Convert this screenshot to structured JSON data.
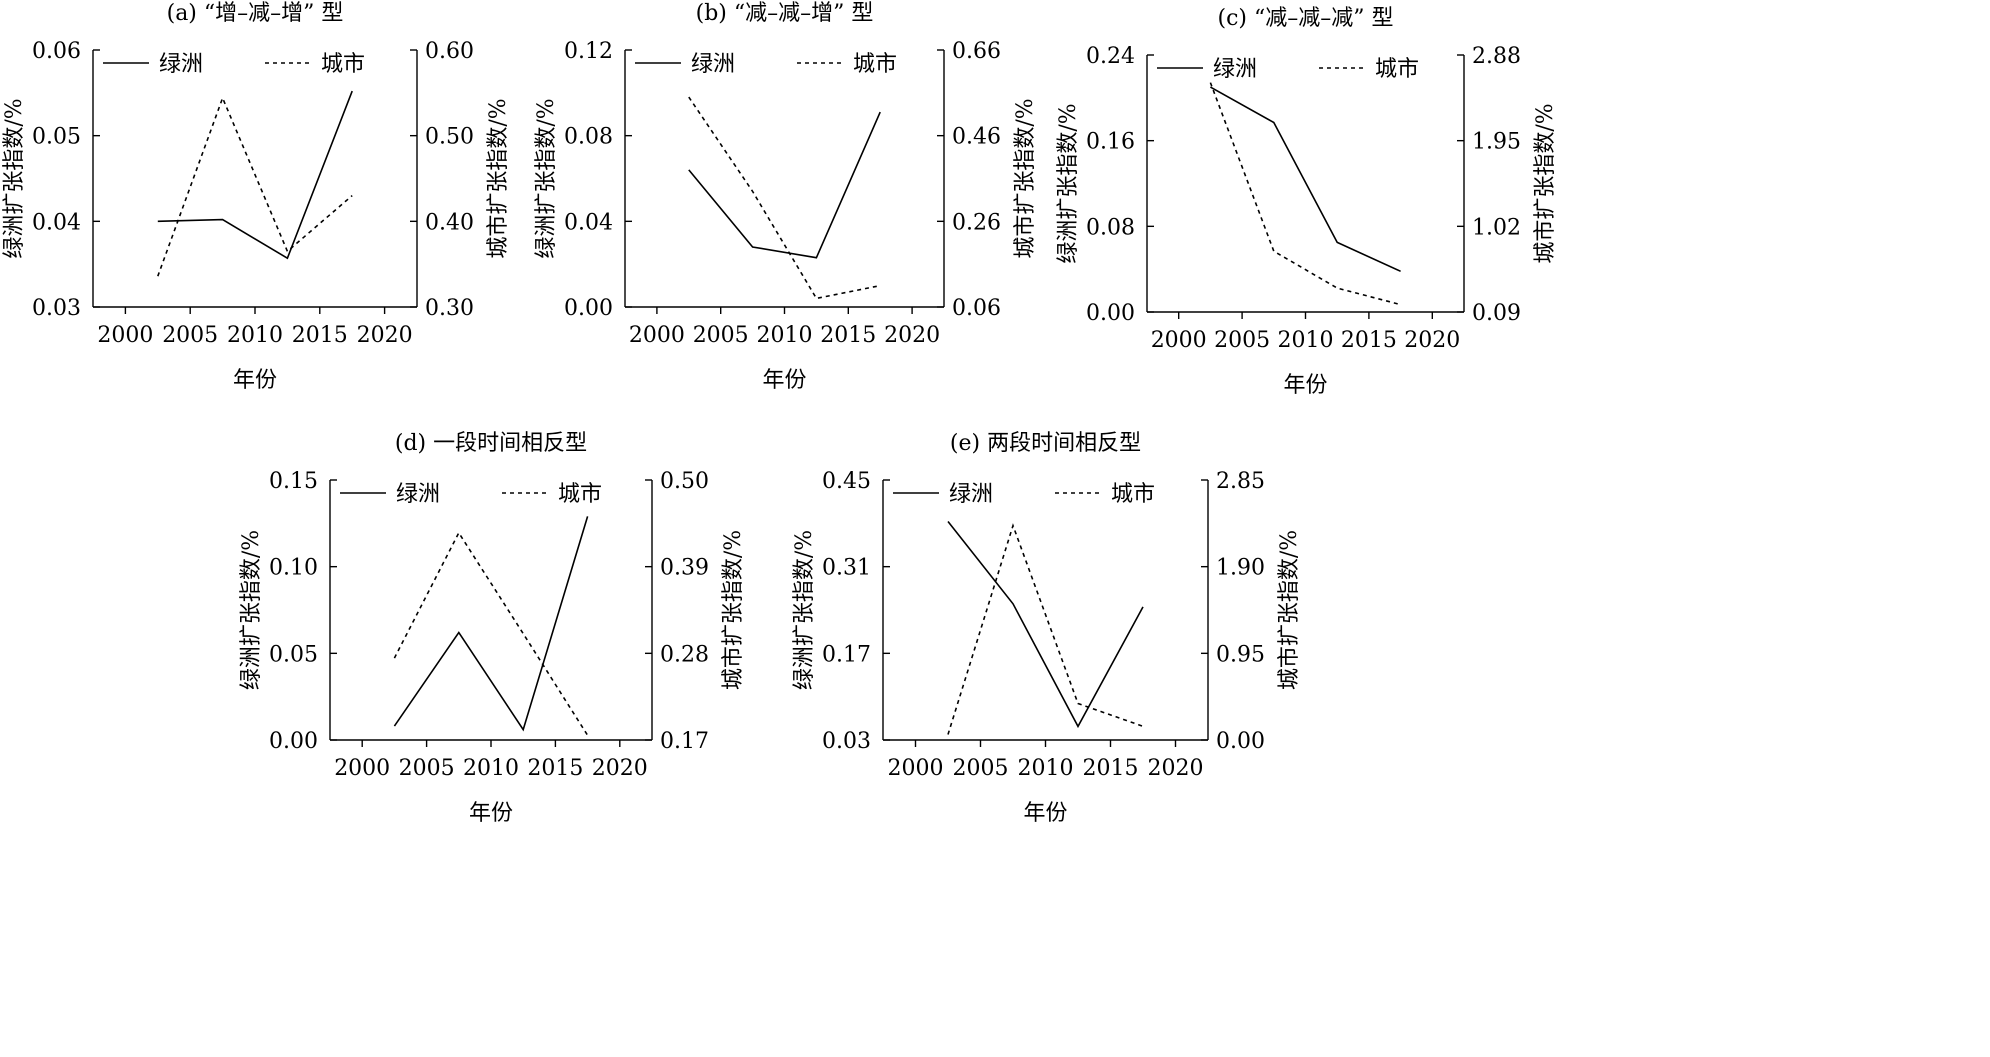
{
  "chart_data": [
    {
      "type": "line",
      "title": "(a) “增–减–增” 型",
      "xlabel": "年份",
      "ylabel": "绿洲扩张指数/%",
      "y2label": "城市扩张指数/%",
      "xlim": [
        1997.5,
        2022.5
      ],
      "xticks": [
        2000,
        2005,
        2010,
        2015,
        2020
      ],
      "ylim": [
        0.03,
        0.06
      ],
      "yticks": [
        "0.03",
        "0.04",
        "0.05",
        "0.06"
      ],
      "y2lim": [
        0.3,
        0.6
      ],
      "y2ticks": [
        "0.30",
        "0.40",
        "0.50",
        "0.60"
      ],
      "legend": "top",
      "series": [
        {
          "name": "绿洲",
          "axis": "left",
          "style": "solid",
          "x": [
            2002.5,
            2007.5,
            2012.5,
            2017.5
          ],
          "values": [
            0.04,
            0.0402,
            0.0357,
            0.0552
          ]
        },
        {
          "name": "城市",
          "axis": "right",
          "style": "dashed",
          "x": [
            2002.5,
            2007.5,
            2012.5,
            2017.5
          ],
          "values": [
            0.336,
            0.544,
            0.365,
            0.43
          ]
        }
      ]
    },
    {
      "type": "line",
      "title": "(b) “减–减–增” 型",
      "xlabel": "年份",
      "ylabel": "绿洲扩张指数/%",
      "y2label": "城市扩张指数/%",
      "xlim": [
        1997.5,
        2022.5
      ],
      "xticks": [
        2000,
        2005,
        2010,
        2015,
        2020
      ],
      "ylim": [
        0.0,
        0.12
      ],
      "yticks": [
        "0.00",
        "0.04",
        "0.08",
        "0.12"
      ],
      "y2lim": [
        0.06,
        0.66
      ],
      "y2ticks": [
        "0.06",
        "0.26",
        "0.46",
        "0.66"
      ],
      "legend": "top",
      "series": [
        {
          "name": "绿洲",
          "axis": "left",
          "style": "solid",
          "x": [
            2002.5,
            2007.5,
            2012.5,
            2017.5
          ],
          "values": [
            0.064,
            0.028,
            0.023,
            0.091
          ]
        },
        {
          "name": "城市",
          "axis": "right",
          "style": "dashed",
          "x": [
            2002.5,
            2007.5,
            2012.5,
            2017.5
          ],
          "values": [
            0.55,
            0.33,
            0.08,
            0.11
          ]
        }
      ]
    },
    {
      "type": "line",
      "title": "(c) “减–减–减” 型",
      "xlabel": "年份",
      "ylabel": "绿洲扩张指数/%",
      "y2label": "城市扩张指数/%",
      "xlim": [
        1997.5,
        2022.5
      ],
      "xticks": [
        2000,
        2005,
        2010,
        2015,
        2020
      ],
      "ylim": [
        0.0,
        0.24
      ],
      "yticks": [
        "0.00",
        "0.08",
        "0.16",
        "0.24"
      ],
      "y2lim": [
        0.09,
        2.88
      ],
      "y2ticks": [
        "0.09",
        "1.02",
        "1.95",
        "2.88"
      ],
      "legend": "top",
      "series": [
        {
          "name": "绿洲",
          "axis": "left",
          "style": "solid",
          "x": [
            2002.5,
            2007.5,
            2012.5,
            2017.5
          ],
          "values": [
            0.21,
            0.177,
            0.065,
            0.038
          ]
        },
        {
          "name": "城市",
          "axis": "right",
          "style": "dashed",
          "x": [
            2002.5,
            2007.5,
            2012.5,
            2017.5
          ],
          "values": [
            2.58,
            0.75,
            0.35,
            0.17
          ]
        }
      ]
    },
    {
      "type": "line",
      "title": "(d) 一段时间相反型",
      "xlabel": "年份",
      "ylabel": "绿洲扩张指数/%",
      "y2label": "城市扩张指数/%",
      "xlim": [
        1997.5,
        2022.5
      ],
      "xticks": [
        2000,
        2005,
        2010,
        2015,
        2020
      ],
      "ylim": [
        0.0,
        0.15
      ],
      "yticks": [
        "0.00",
        "0.05",
        "0.10",
        "0.15"
      ],
      "y2lim": [
        0.17,
        0.5
      ],
      "y2ticks": [
        "0.17",
        "0.28",
        "0.39",
        "0.50"
      ],
      "legend": "top",
      "series": [
        {
          "name": "绿洲",
          "axis": "left",
          "style": "solid",
          "x": [
            2002.5,
            2007.5,
            2012.5,
            2017.5
          ],
          "values": [
            0.008,
            0.062,
            0.006,
            0.129
          ]
        },
        {
          "name": "城市",
          "axis": "right",
          "style": "dashed",
          "x": [
            2002.5,
            2007.5,
            2012.5,
            2017.5
          ],
          "values": [
            0.274,
            0.433,
            0.305,
            0.176
          ]
        }
      ]
    },
    {
      "type": "line",
      "title": "(e) 两段时间相反型",
      "xlabel": "年份",
      "ylabel": "绿洲扩张指数/%",
      "y2label": "城市扩张指数/%",
      "xlim": [
        1997.5,
        2022.5
      ],
      "xticks": [
        2000,
        2005,
        2010,
        2015,
        2020
      ],
      "ylim": [
        0.03,
        0.45
      ],
      "yticks": [
        "0.03",
        "0.17",
        "0.31",
        "0.45"
      ],
      "y2lim": [
        0.0,
        2.85
      ],
      "y2ticks": [
        "0.00",
        "0.95",
        "1.90",
        "2.85"
      ],
      "legend": "top",
      "series": [
        {
          "name": "绿洲",
          "axis": "left",
          "style": "solid",
          "x": [
            2002.5,
            2007.5,
            2012.5,
            2017.5
          ],
          "values": [
            0.383,
            0.25,
            0.052,
            0.245
          ]
        },
        {
          "name": "城市",
          "axis": "right",
          "style": "dashed",
          "x": [
            2002.5,
            2007.5,
            2012.5,
            2017.5
          ],
          "values": [
            0.06,
            2.35,
            0.4,
            0.15
          ]
        }
      ]
    }
  ]
}
